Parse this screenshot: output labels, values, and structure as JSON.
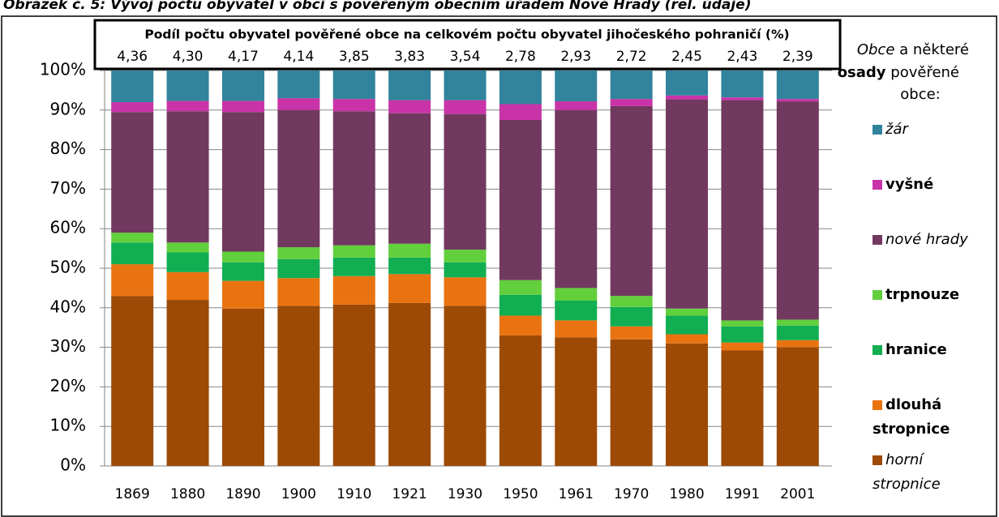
{
  "chart_data": {
    "type": "stacked_bar",
    "title": "Obrázek č. 5: Vývoj počtu obyvatel v obci s pověřeným obecním úřadem Nové Hrady (rel. údaje)",
    "header": {
      "title": "Podíl počtu obyvatel pověřené obce na celkovém počtu obyvatel jihočeského pohraničí (%)",
      "values": [
        4.36,
        4.3,
        4.17,
        4.14,
        3.85,
        3.83,
        3.54,
        2.78,
        2.93,
        2.72,
        2.45,
        2.43,
        2.39
      ],
      "value_labels": [
        "4,36",
        "4,30",
        "4,17",
        "4,14",
        "3,85",
        "3,83",
        "3,54",
        "2,78",
        "2,93",
        "2,72",
        "2,45",
        "2,43",
        "2,39"
      ]
    },
    "legend_title": [
      "Obce",
      " a některé ",
      "osady",
      " pověřené obce:"
    ],
    "categories": [
      "1869",
      "1880",
      "1890",
      "1900",
      "1910",
      "1921",
      "1930",
      "1950",
      "1961",
      "1970",
      "1980",
      "1991",
      "2001"
    ],
    "series": [
      {
        "name": "horní stropnice",
        "color": "#9c4a06",
        "font_style": "italic",
        "values": [
          43,
          42,
          39.8,
          40.5,
          40.8,
          41.2,
          40.5,
          33,
          32.5,
          32,
          31,
          29.2,
          30
        ]
      },
      {
        "name": "dlouhá stropnice",
        "color": "#e97311",
        "font_style": "bold",
        "values": [
          8,
          7,
          7,
          7,
          7.2,
          7.3,
          7.2,
          5,
          4.3,
          3.3,
          2.3,
          2,
          1.8
        ]
      },
      {
        "name": "hranice",
        "color": "#12ae52",
        "font_style": "bold",
        "values": [
          5.5,
          5,
          4.7,
          4.8,
          4.7,
          4.2,
          3.8,
          5.3,
          5,
          4.9,
          4.7,
          4.1,
          3.7
        ]
      },
      {
        "name": "trpnouze",
        "color": "#62cf3c",
        "font_style": "bold",
        "values": [
          2.5,
          2.5,
          2.7,
          3,
          3.1,
          3.5,
          3.2,
          3.7,
          3.2,
          2.8,
          1.8,
          1.5,
          1.5
        ]
      },
      {
        "name": "nové hrady",
        "color": "#71395f",
        "font_style": "italic",
        "values": [
          30.5,
          33.2,
          35.3,
          34.7,
          33.9,
          33,
          34.3,
          40.5,
          45,
          48,
          52.9,
          55.7,
          55.2
        ]
      },
      {
        "name": "vyšné",
        "color": "#c933a8",
        "font_style": "bold",
        "values": [
          2.5,
          2.6,
          2.8,
          3,
          3.1,
          3.3,
          3.5,
          4,
          2.2,
          1.8,
          1,
          0.7,
          0.6
        ]
      },
      {
        "name": "žár",
        "color": "#31849b",
        "font_style": "italic",
        "values": [
          8,
          7.7,
          7.7,
          7,
          7.2,
          7.5,
          7.5,
          8.5,
          7.8,
          7.2,
          6.3,
          6.8,
          7.2
        ]
      }
    ],
    "ylim": [
      0,
      100
    ],
    "yticks": [
      {
        "value": 0,
        "label": "0%"
      },
      {
        "value": 10,
        "label": "10%"
      },
      {
        "value": 20,
        "label": "20%"
      },
      {
        "value": 30,
        "label": "30%"
      },
      {
        "value": 40,
        "label": "40%"
      },
      {
        "value": 50,
        "label": "50%"
      },
      {
        "value": 60,
        "label": "60%"
      },
      {
        "value": 70,
        "label": "70%"
      },
      {
        "value": 80,
        "label": "80%"
      },
      {
        "value": 90,
        "label": "90%"
      },
      {
        "value": 100,
        "label": "100%"
      }
    ],
    "grid": true
  }
}
